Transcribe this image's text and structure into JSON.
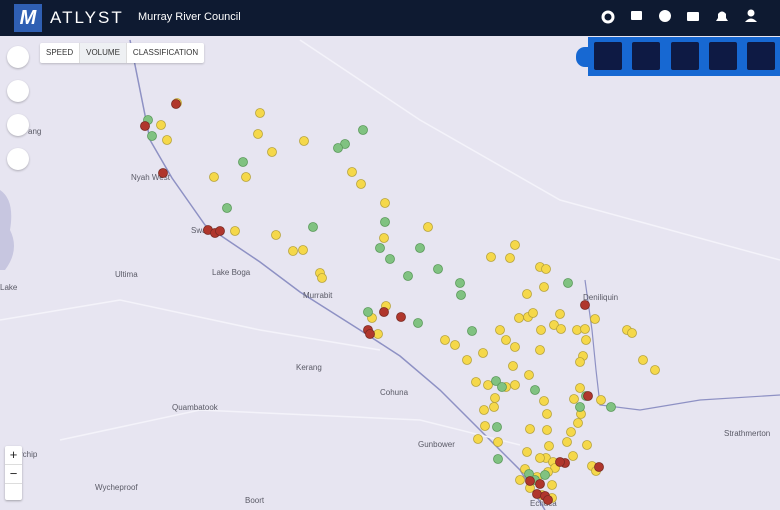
{
  "header": {
    "logo_letter": "M",
    "brand": "ATLYST",
    "council": "Murray River Council"
  },
  "tabs": [
    "SPEED",
    "VOLUME",
    "CLASSIFICATION"
  ],
  "places": [
    "Nyah West",
    "Swa",
    "Ultima",
    "Lake Boga",
    "Murrabit",
    "Kerang",
    "Cohuna",
    "Quambatook",
    "Gunbower",
    "Wycheproof",
    "Boort",
    "Deniliquin",
    "Strathmerton",
    "Echuca",
    "Lake",
    "rchip",
    "ang"
  ],
  "zoom": {
    "in": "+",
    "out": "−"
  }
}
